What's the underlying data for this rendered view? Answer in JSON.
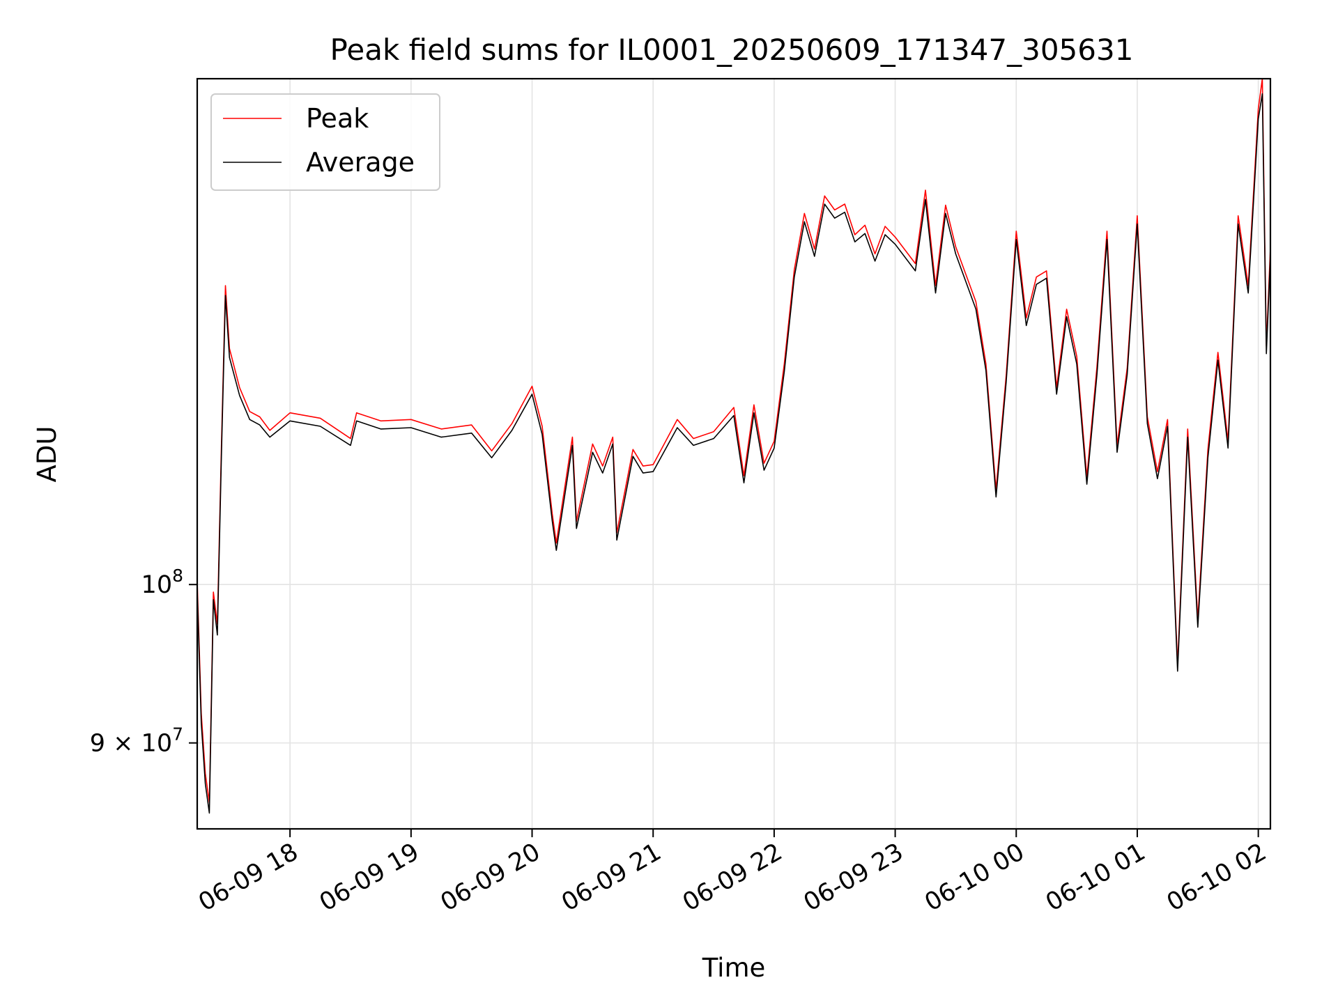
{
  "chart_data": {
    "type": "line",
    "title": "Peak field sums for IL0001_20250609_171347_305631",
    "xlabel": "Time",
    "ylabel": "ADU",
    "y_scale": "log",
    "grid": true,
    "legend_position": "top-left",
    "xlim": [
      "2025-06-09 17:14",
      "2025-06-10 02:06"
    ],
    "ylim": [
      85000000,
      140000000
    ],
    "x_ticks": [
      {
        "value": "2025-06-09 18:00",
        "label": "06-09 18"
      },
      {
        "value": "2025-06-09 19:00",
        "label": "06-09 19"
      },
      {
        "value": "2025-06-09 20:00",
        "label": "06-09 20"
      },
      {
        "value": "2025-06-09 21:00",
        "label": "06-09 21"
      },
      {
        "value": "2025-06-09 22:00",
        "label": "06-09 22"
      },
      {
        "value": "2025-06-09 23:00",
        "label": "06-09 23"
      },
      {
        "value": "2025-06-10 00:00",
        "label": "06-10 00"
      },
      {
        "value": "2025-06-10 01:00",
        "label": "06-10 01"
      },
      {
        "value": "2025-06-10 02:00",
        "label": "06-10 02"
      }
    ],
    "y_ticks": [
      {
        "value": 90000000,
        "label_main": "9 × 10",
        "label_exp": "7"
      },
      {
        "value": 100000000,
        "label_main": "10",
        "label_exp": "8"
      }
    ],
    "x": [
      "2025-06-09 17:14",
      "2025-06-09 17:16",
      "2025-06-09 17:18",
      "2025-06-09 17:20",
      "2025-06-09 17:22",
      "2025-06-09 17:24",
      "2025-06-09 17:26",
      "2025-06-09 17:28",
      "2025-06-09 17:30",
      "2025-06-09 17:35",
      "2025-06-09 17:40",
      "2025-06-09 17:45",
      "2025-06-09 17:50",
      "2025-06-09 18:00",
      "2025-06-09 18:15",
      "2025-06-09 18:30",
      "2025-06-09 18:33",
      "2025-06-09 18:45",
      "2025-06-09 19:00",
      "2025-06-09 19:15",
      "2025-06-09 19:30",
      "2025-06-09 19:40",
      "2025-06-09 19:50",
      "2025-06-09 20:00",
      "2025-06-09 20:05",
      "2025-06-09 20:10",
      "2025-06-09 20:12",
      "2025-06-09 20:20",
      "2025-06-09 20:22",
      "2025-06-09 20:30",
      "2025-06-09 20:35",
      "2025-06-09 20:40",
      "2025-06-09 20:42",
      "2025-06-09 20:50",
      "2025-06-09 20:55",
      "2025-06-09 21:00",
      "2025-06-09 21:12",
      "2025-06-09 21:20",
      "2025-06-09 21:30",
      "2025-06-09 21:40",
      "2025-06-09 21:45",
      "2025-06-09 21:50",
      "2025-06-09 21:55",
      "2025-06-09 22:00",
      "2025-06-09 22:05",
      "2025-06-09 22:10",
      "2025-06-09 22:15",
      "2025-06-09 22:20",
      "2025-06-09 22:25",
      "2025-06-09 22:30",
      "2025-06-09 22:35",
      "2025-06-09 22:40",
      "2025-06-09 22:45",
      "2025-06-09 22:50",
      "2025-06-09 22:55",
      "2025-06-09 23:00",
      "2025-06-09 23:10",
      "2025-06-09 23:15",
      "2025-06-09 23:20",
      "2025-06-09 23:25",
      "2025-06-09 23:30",
      "2025-06-09 23:40",
      "2025-06-09 23:45",
      "2025-06-09 23:50",
      "2025-06-09 23:55",
      "2025-06-10 00:00",
      "2025-06-10 00:05",
      "2025-06-10 00:10",
      "2025-06-10 00:15",
      "2025-06-10 00:20",
      "2025-06-10 00:25",
      "2025-06-10 00:30",
      "2025-06-10 00:35",
      "2025-06-10 00:40",
      "2025-06-10 00:45",
      "2025-06-10 00:50",
      "2025-06-10 00:55",
      "2025-06-10 01:00",
      "2025-06-10 01:05",
      "2025-06-10 01:10",
      "2025-06-10 01:15",
      "2025-06-10 01:20",
      "2025-06-10 01:25",
      "2025-06-10 01:30",
      "2025-06-10 01:35",
      "2025-06-10 01:40",
      "2025-06-10 01:45",
      "2025-06-10 01:50",
      "2025-06-10 01:55",
      "2025-06-10 02:00",
      "2025-06-10 02:02",
      "2025-06-10 02:04",
      "2025-06-10 02:06"
    ],
    "series": [
      {
        "name": "Peak",
        "color": "#ff0000",
        "values": [
          100200000,
          91800000,
          88200000,
          86500000,
          99500000,
          97400000,
          109600000,
          122000000,
          117000000,
          114000000,
          112200000,
          111800000,
          110800000,
          112100000,
          111700000,
          110200000,
          112100000,
          111500000,
          111600000,
          110900000,
          111200000,
          109300000,
          111300000,
          114100000,
          111100000,
          104800000,
          102800000,
          110300000,
          104300000,
          109800000,
          108200000,
          110300000,
          103500000,
          109400000,
          108200000,
          108300000,
          111600000,
          110200000,
          110700000,
          112500000,
          107500000,
          112700000,
          108400000,
          110000000,
          115800000,
          123300000,
          128000000,
          125000000,
          129500000,
          128300000,
          128800000,
          126200000,
          127000000,
          124600000,
          126900000,
          126000000,
          123800000,
          130000000,
          122000000,
          128700000,
          125200000,
          120700000,
          115800000,
          106500000,
          114900000,
          126500000,
          119400000,
          122700000,
          123200000,
          114000000,
          120100000,
          116400000,
          107400000,
          115600000,
          126500000,
          109700000,
          115500000,
          127800000,
          111800000,
          107800000,
          111600000,
          94800000,
          110900000,
          97700000,
          109400000,
          116700000,
          110000000,
          127800000,
          122000000,
          137200000,
          140000000,
          117200000,
          125100000
        ]
      },
      {
        "name": "Average",
        "color": "#000000",
        "values": [
          99600000,
          91200000,
          87600000,
          85900000,
          99000000,
          96700000,
          108900000,
          121200000,
          116300000,
          113400000,
          111600000,
          111200000,
          110300000,
          111500000,
          111100000,
          109700000,
          111500000,
          110900000,
          111000000,
          110300000,
          110600000,
          108800000,
          110800000,
          113500000,
          110500000,
          104300000,
          102300000,
          109700000,
          103800000,
          109200000,
          107700000,
          109800000,
          103000000,
          108900000,
          107700000,
          107800000,
          111000000,
          109700000,
          110200000,
          111900000,
          107000000,
          112100000,
          107900000,
          109500000,
          115200000,
          122700000,
          127300000,
          124400000,
          128800000,
          127600000,
          128100000,
          125600000,
          126300000,
          124000000,
          126200000,
          125400000,
          123200000,
          129200000,
          121400000,
          128000000,
          124600000,
          120100000,
          115300000,
          106000000,
          114400000,
          125800000,
          118800000,
          122100000,
          122600000,
          113500000,
          119500000,
          115800000,
          106900000,
          115000000,
          125800000,
          109200000,
          115000000,
          127100000,
          111300000,
          107300000,
          111100000,
          94400000,
          110300000,
          97200000,
          108800000,
          116100000,
          109500000,
          127100000,
          121400000,
          136300000,
          138600000,
          116600000,
          124400000
        ]
      }
    ]
  }
}
